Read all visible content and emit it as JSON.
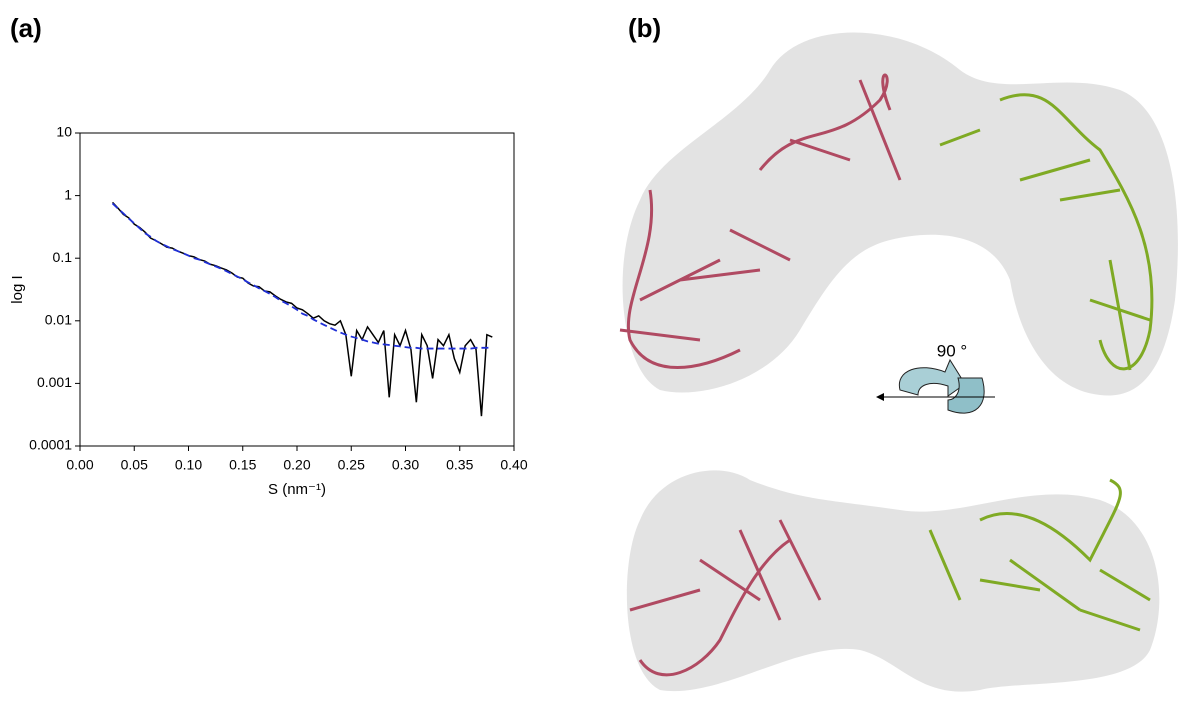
{
  "panel_labels": [
    "(a)",
    "(b)"
  ],
  "rotation_label": "90 °",
  "chart_data": {
    "type": "line",
    "xlabel": "S (nm⁻¹)",
    "ylabel": "log I",
    "x": [
      0.03,
      0.035,
      0.04,
      0.045,
      0.05,
      0.055,
      0.06,
      0.065,
      0.07,
      0.075,
      0.08,
      0.085,
      0.09,
      0.095,
      0.1,
      0.105,
      0.11,
      0.115,
      0.12,
      0.125,
      0.13,
      0.135,
      0.14,
      0.145,
      0.15,
      0.155,
      0.16,
      0.165,
      0.17,
      0.175,
      0.18,
      0.185,
      0.19,
      0.195,
      0.2,
      0.205,
      0.21,
      0.215,
      0.22,
      0.225,
      0.23,
      0.235,
      0.24,
      0.245,
      0.25,
      0.255,
      0.26,
      0.265,
      0.27,
      0.275,
      0.28,
      0.285,
      0.29,
      0.295,
      0.3,
      0.305,
      0.31,
      0.315,
      0.32,
      0.325,
      0.33,
      0.335,
      0.34,
      0.345,
      0.35,
      0.355,
      0.36,
      0.365,
      0.37,
      0.375,
      0.38
    ],
    "series": [
      {
        "color": "#000000",
        "dashed": false,
        "values": [
          0.78,
          0.63,
          0.5,
          0.44,
          0.35,
          0.31,
          0.26,
          0.21,
          0.19,
          0.17,
          0.15,
          0.145,
          0.13,
          0.12,
          0.11,
          0.105,
          0.095,
          0.09,
          0.08,
          0.076,
          0.07,
          0.065,
          0.058,
          0.05,
          0.048,
          0.04,
          0.036,
          0.035,
          0.03,
          0.029,
          0.025,
          0.022,
          0.02,
          0.019,
          0.016,
          0.015,
          0.013,
          0.011,
          0.012,
          0.01,
          0.009,
          0.0085,
          0.01,
          0.006,
          0.0013,
          0.007,
          0.005,
          0.008,
          0.006,
          0.0045,
          0.007,
          0.0006,
          0.006,
          0.004,
          0.007,
          0.0035,
          0.0005,
          0.006,
          0.004,
          0.0012,
          0.005,
          0.004,
          0.006,
          0.0025,
          0.0015,
          0.004,
          0.005,
          0.0035,
          0.0003,
          0.006,
          0.0055
        ]
      },
      {
        "color": "#1f2fd6",
        "dashed": true,
        "values": [
          0.75,
          0.62,
          0.52,
          0.43,
          0.36,
          0.3,
          0.25,
          0.22,
          0.19,
          0.17,
          0.155,
          0.14,
          0.13,
          0.12,
          0.11,
          0.1,
          0.095,
          0.087,
          0.08,
          0.074,
          0.068,
          0.062,
          0.056,
          0.051,
          0.046,
          0.041,
          0.037,
          0.033,
          0.03,
          0.027,
          0.024,
          0.021,
          0.019,
          0.017,
          0.015,
          0.013,
          0.012,
          0.0105,
          0.0095,
          0.0086,
          0.0078,
          0.0071,
          0.0065,
          0.006,
          0.0056,
          0.0053,
          0.005,
          0.0047,
          0.0045,
          0.0043,
          0.0042,
          0.0041,
          0.004,
          0.0039,
          0.0038,
          0.0037,
          0.0037,
          0.0036,
          0.0036,
          0.0036,
          0.0036,
          0.0036,
          0.0036,
          0.0036,
          0.0036,
          0.0036,
          0.0036,
          0.0037,
          0.0037,
          0.0037,
          0.0038
        ]
      }
    ],
    "xlim": [
      0,
      0.4
    ],
    "xticks": [
      {
        "value": 0,
        "label": "0.00"
      },
      {
        "value": 0.05,
        "label": "0.05"
      },
      {
        "value": 0.1,
        "label": "0.10"
      },
      {
        "value": 0.15,
        "label": "0.15"
      },
      {
        "value": 0.2,
        "label": "0.20"
      },
      {
        "value": 0.25,
        "label": "0.25"
      },
      {
        "value": 0.3,
        "label": "0.30"
      },
      {
        "value": 0.35,
        "label": "0.35"
      },
      {
        "value": 0.4,
        "label": "0.40"
      }
    ],
    "ylim": [
      0.0001,
      10
    ],
    "yticks": [
      10,
      1,
      0.1,
      0.01,
      0.001,
      0.0001
    ],
    "ylog": true,
    "grid": false
  }
}
